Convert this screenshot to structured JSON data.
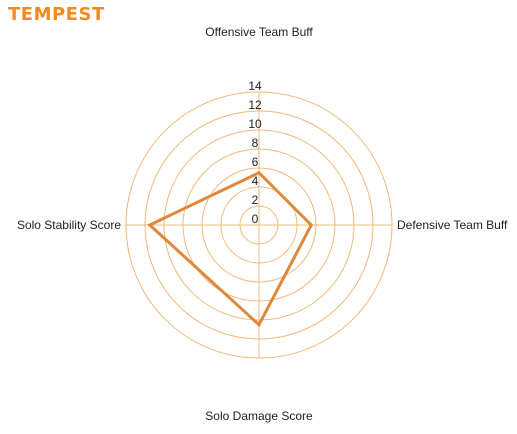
{
  "chart_data": {
    "type": "radar",
    "title": "TEMPEST",
    "axes": [
      "Offensive Team Buff",
      "Defensive Team Buff",
      "Solo Damage Score",
      "Solo Stability Score"
    ],
    "series": [
      {
        "values": [
          5.5,
          5.5,
          10.5,
          11.5
        ]
      }
    ],
    "rlim": [
      0,
      14
    ],
    "ticks": [
      0,
      2,
      4,
      6,
      8,
      10,
      12,
      14
    ],
    "grid": true,
    "colors": {
      "title": "#f28a1e",
      "grid": "#f2b878",
      "series": "#e0883a"
    }
  }
}
